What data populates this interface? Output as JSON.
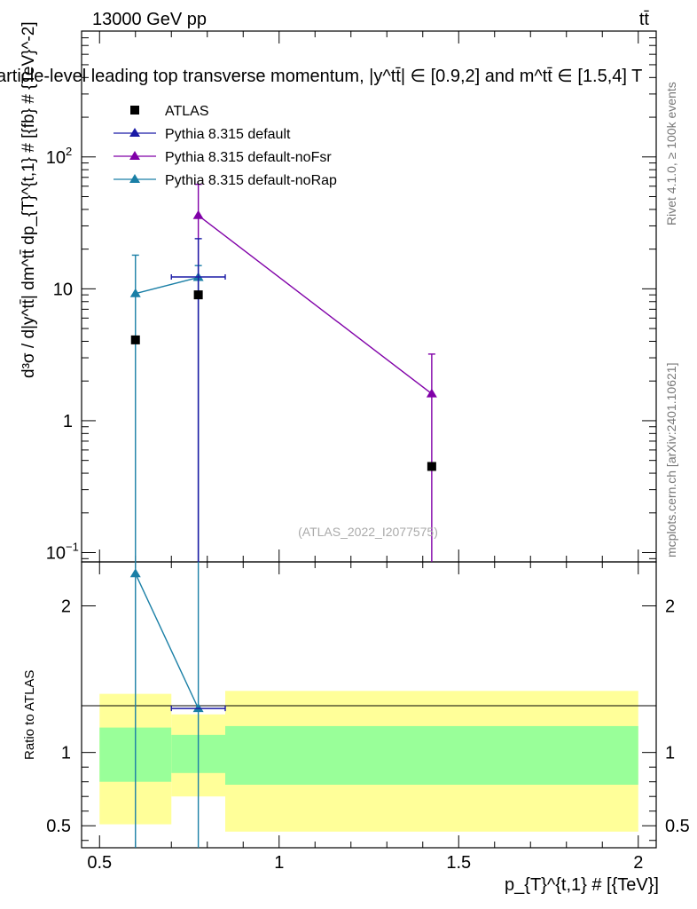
{
  "header": {
    "energy": "13000 GeV pp",
    "process": "tt̄",
    "title": "article-level leading top transverse momentum, |y^tt̄| ∈ [0.9,2] and m^tt̄ ∈ [1.5,4] T",
    "watermark": "(ATLAS_2022_I2077575)",
    "side_rivet": "Rivet 4.1.0, ≥ 100k events",
    "side_mcplots": "mcplots.cern.ch [arXiv:2401.10621]"
  },
  "colors": {
    "atlas": "#000000",
    "default": "#1a1aa6",
    "noFsr": "#8000a8",
    "noRap": "#1a7fa6",
    "band_outer": "#ffff99",
    "band_inner": "#99ff99"
  },
  "chart_data": {
    "type": "scatter",
    "title": "article-level leading top transverse momentum, |y^tt̄| ∈ [0.9,2] and m^tt̄ ∈ [1.5,4] T",
    "xlabel": "p_{T}^{t,1} # [{TeV}]",
    "ylabel": "d³σ / d|y^tt̄| dm^tt̄ dp_{T}^{t,1} # [{fb} # {TeV}^-2]",
    "ratio_ylabel": "Ratio to ATLAS",
    "xlim": [
      0.45,
      2.05
    ],
    "ylim": [
      0.085,
      900
    ],
    "ratio_ylim": [
      0.35,
      2.3
    ],
    "x_ticks": [
      "0.5",
      "1",
      "1.5",
      "2"
    ],
    "y_ticks": [
      "10^-1",
      "1",
      "10",
      "10^2"
    ],
    "ratio_ticks": [
      "0.5",
      "1",
      "2"
    ],
    "legend": [
      "ATLAS",
      "Pythia 8.315 default",
      "Pythia 8.315 default-noFsr",
      "Pythia 8.315 default-noRap"
    ],
    "bins": [
      [
        0.5,
        0.7
      ],
      [
        0.7,
        0.85
      ],
      [
        0.85,
        2.0
      ]
    ],
    "series": [
      {
        "name": "ATLAS",
        "x": [
          0.6,
          0.775,
          1.425
        ],
        "y": [
          4.1,
          9.0,
          0.45
        ]
      },
      {
        "name": "Pythia 8.315 default",
        "x": [
          0.775
        ],
        "y": [
          12.3
        ],
        "xerr": [
          [
            0.7,
            0.85
          ]
        ],
        "yerr": [
          [
            0.08,
            24
          ]
        ]
      },
      {
        "name": "Pythia 8.315 default-noFsr",
        "x": [
          0.775,
          1.425
        ],
        "y": [
          36,
          1.6
        ],
        "yerr": [
          [
            0.08,
            62
          ],
          [
            0.08,
            3.2
          ]
        ]
      },
      {
        "name": "Pythia 8.315 default-noRap",
        "x": [
          0.6,
          0.775
        ],
        "y": [
          9.2,
          12.2
        ],
        "yerr": [
          [
            0.08,
            18
          ],
          [
            0.08,
            15
          ]
        ]
      }
    ],
    "ratio": {
      "band_inner": [
        [
          0.8,
          1.17
        ],
        [
          0.86,
          1.12
        ],
        [
          0.78,
          1.18
        ]
      ],
      "band_outer": [
        [
          0.51,
          1.4
        ],
        [
          0.7,
          1.26
        ],
        [
          0.46,
          1.42
        ]
      ],
      "noRap": {
        "x": [
          0.6,
          0.775
        ],
        "y": [
          2.22,
          1.3
        ]
      },
      "default": {
        "x": [
          0.775
        ],
        "y": [
          1.3
        ]
      }
    }
  }
}
